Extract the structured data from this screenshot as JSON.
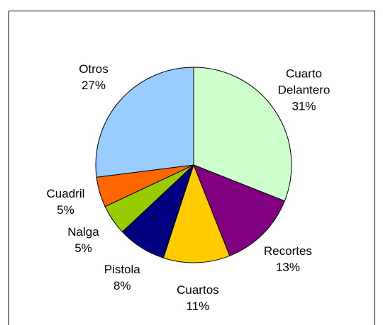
{
  "chart_data": {
    "type": "pie",
    "categories": [
      "Cuarto Delantero",
      "Recortes",
      "Cuartos",
      "Pistola",
      "Nalga",
      "Cuadril",
      "Otros"
    ],
    "values": [
      31,
      13,
      11,
      8,
      5,
      5,
      27
    ],
    "value_labels": [
      "31%",
      "13%",
      "11%",
      "8%",
      "5%",
      "5%",
      "27%"
    ],
    "colors": [
      "#ccffcc",
      "#800080",
      "#ffcc00",
      "#000080",
      "#99cc00",
      "#ff6600",
      "#99ccff"
    ]
  }
}
